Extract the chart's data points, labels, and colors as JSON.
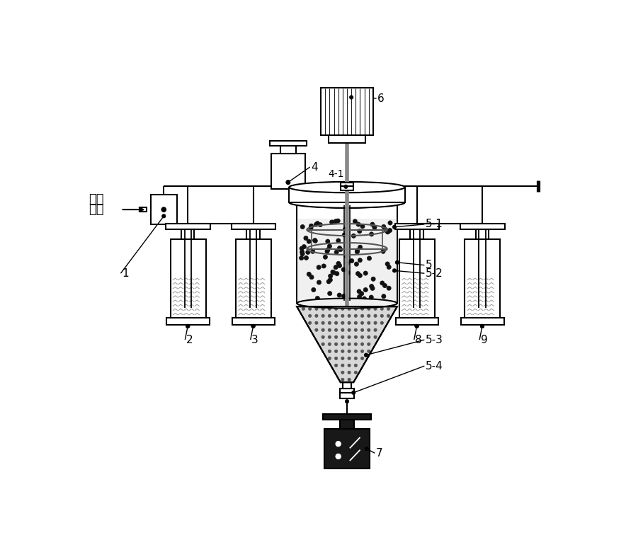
{
  "bg_color": "#ffffff",
  "shaft_color": "#888888",
  "figsize": [
    8.84,
    7.8
  ],
  "dpi": 100,
  "lw": 1.5
}
